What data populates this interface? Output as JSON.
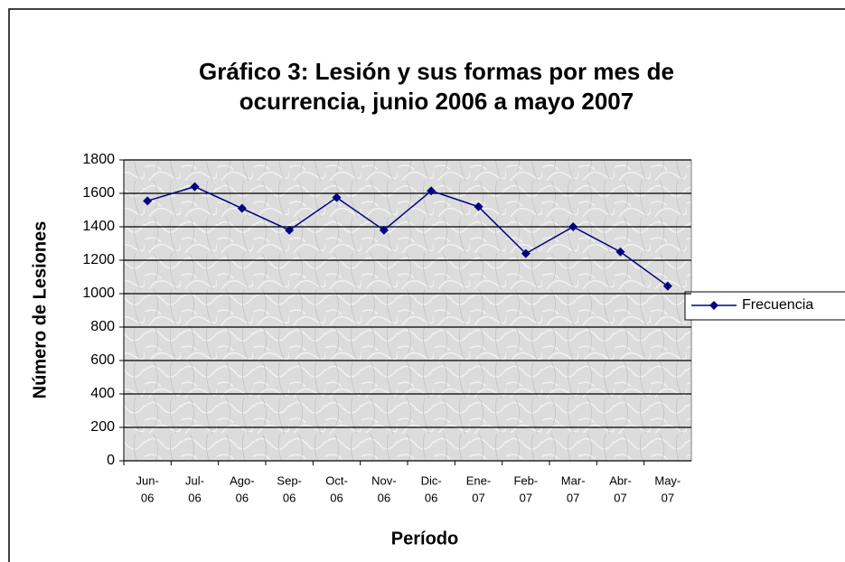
{
  "chart_data": {
    "type": "line",
    "title": [
      "Gráfico 3: Lesión y sus formas por mes de",
      "ocurrencia, junio 2006 a mayo 2007"
    ],
    "x_label": "Período",
    "y_label": "Número de Lesiones",
    "categories": [
      [
        "Jun-",
        "06"
      ],
      [
        "Jul-",
        "06"
      ],
      [
        "Ago-",
        "06"
      ],
      [
        "Sep-",
        "06"
      ],
      [
        "Oct-",
        "06"
      ],
      [
        "Nov-",
        "06"
      ],
      [
        "Dic-",
        "06"
      ],
      [
        "Ene-",
        "07"
      ],
      [
        "Feb-",
        "07"
      ],
      [
        "Mar-",
        "07"
      ],
      [
        "Abr-",
        "07"
      ],
      [
        "May-",
        "07"
      ]
    ],
    "series": [
      {
        "name": "Frecuencia",
        "color": "#000080",
        "values": [
          1555,
          1640,
          1510,
          1380,
          1575,
          1380,
          1615,
          1520,
          1240,
          1400,
          1250,
          1045
        ]
      }
    ],
    "ylim": [
      0,
      1800
    ],
    "yticks": [
      0,
      200,
      400,
      600,
      800,
      1000,
      1200,
      1400,
      1600,
      1800
    ],
    "grid": true,
    "legend": "right"
  }
}
